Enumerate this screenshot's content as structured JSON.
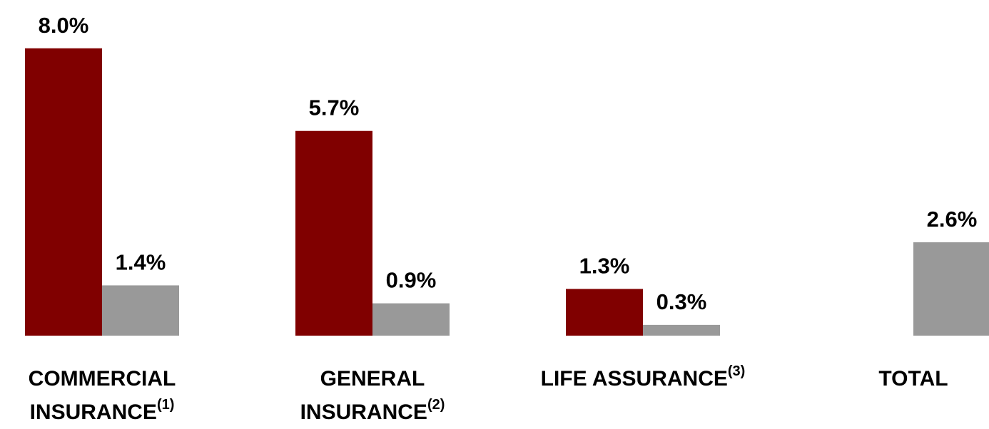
{
  "chart_data": {
    "type": "bar",
    "categories": [
      [
        "COMMERCIAL",
        "INSURANCE"
      ],
      [
        "GENERAL",
        "INSURANCE"
      ],
      [
        "LIFE ASSURANCE"
      ],
      [
        "TOTAL"
      ]
    ],
    "category_notes": [
      "(1)",
      "(2)",
      "(3)",
      null
    ],
    "series": [
      {
        "color": "#800000",
        "values": [
          8.0,
          5.7,
          1.3,
          null
        ],
        "value_labels": [
          "8.0%",
          "5.7%",
          "1.3%",
          null
        ]
      },
      {
        "color": "#999999",
        "values": [
          1.4,
          0.9,
          0.3,
          2.6
        ],
        "value_labels": [
          "1.4%",
          "0.9%",
          "0.3%",
          "2.6%"
        ]
      }
    ]
  }
}
